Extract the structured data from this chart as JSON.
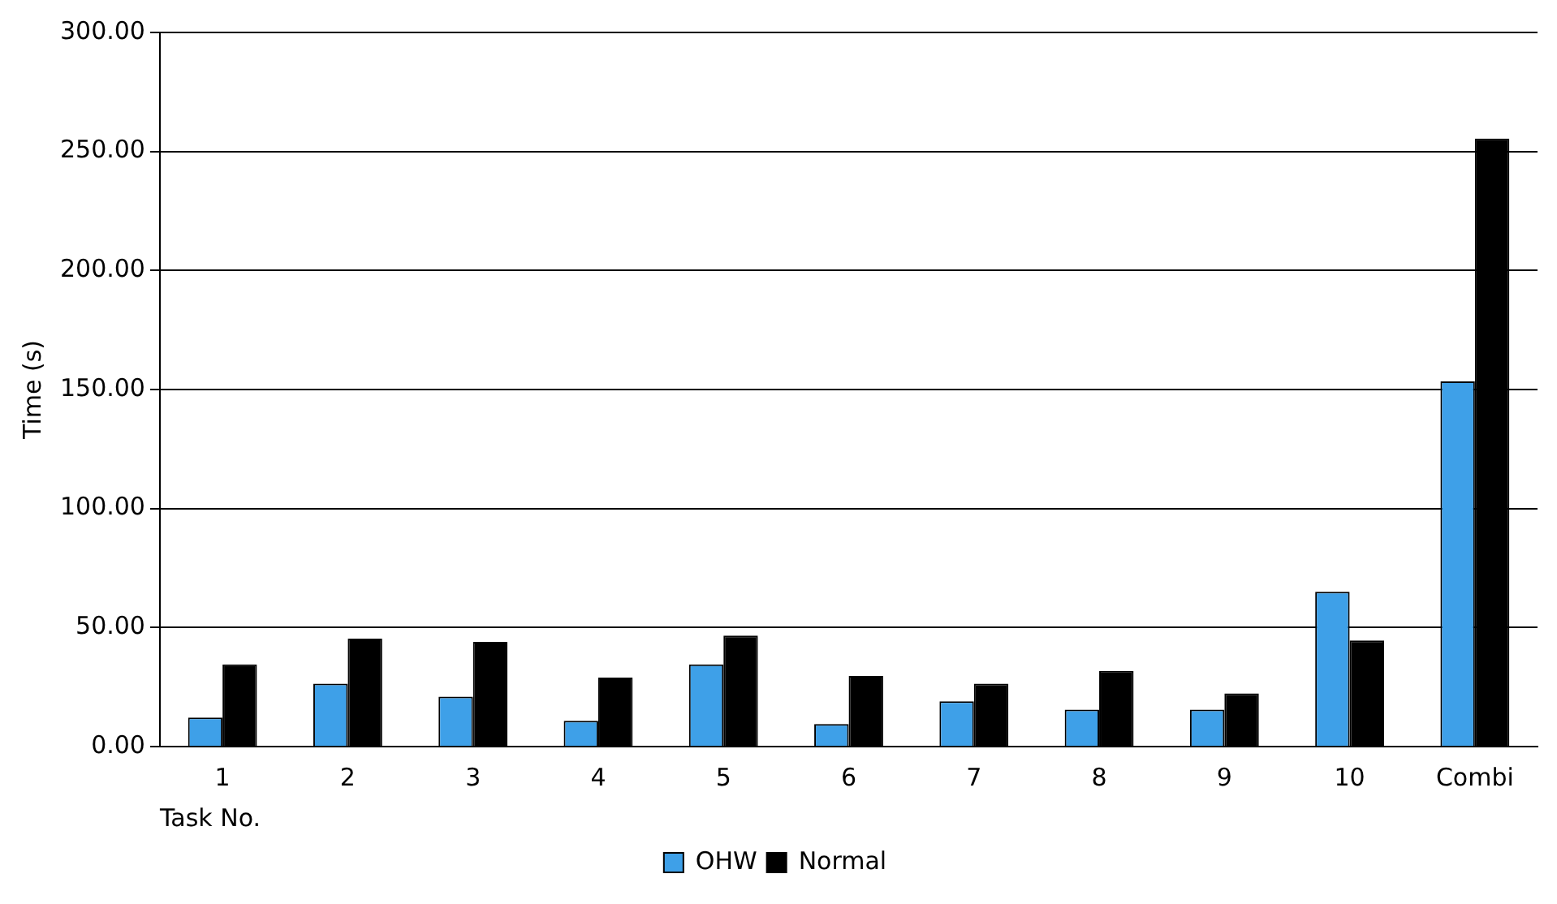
{
  "chart_data": {
    "type": "bar",
    "xlabel": "Task No.",
    "ylabel": "Time (s)",
    "categories": [
      "1",
      "2",
      "3",
      "4",
      "5",
      "6",
      "7",
      "8",
      "9",
      "10",
      "Combi"
    ],
    "series": [
      {
        "name": "OHW",
        "color": "#3ea0e8",
        "values": [
          12.2,
          26.4,
          21,
          10.8,
          34.5,
          9.5,
          19,
          15.5,
          15.5,
          65,
          153.4
        ]
      },
      {
        "name": "Normal",
        "color": "#000000",
        "values": [
          34.5,
          45.3,
          44,
          29,
          46.6,
          29.7,
          26.4,
          31.8,
          22.3,
          44.6,
          255.4
        ]
      }
    ],
    "ylim": [
      0,
      300
    ],
    "yticks": [
      {
        "value": 0,
        "label": "0.00"
      },
      {
        "value": 50,
        "label": "50.00"
      },
      {
        "value": 100,
        "label": "100.00"
      },
      {
        "value": 150,
        "label": "150.00"
      },
      {
        "value": 200,
        "label": "200.00"
      },
      {
        "value": 250,
        "label": "250.00"
      },
      {
        "value": 300,
        "label": "300.00"
      }
    ],
    "grid": "y",
    "legend": "bottom"
  }
}
